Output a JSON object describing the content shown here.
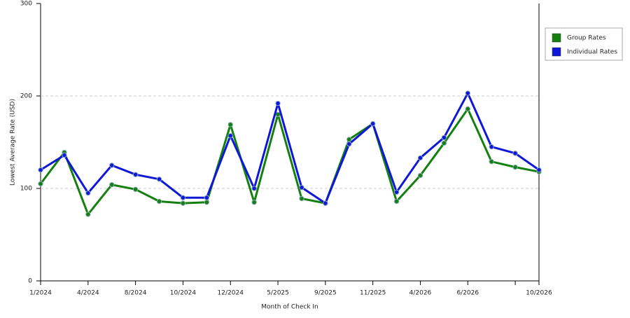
{
  "chart_data": {
    "type": "line",
    "x_label": "Month of Check In",
    "y_label": "Lowest Average Rate (USD)",
    "categories": [
      "1/2024",
      null,
      "4/2024",
      null,
      "8/2024",
      null,
      "10/2024",
      null,
      "12/2024",
      null,
      "5/2025",
      null,
      "9/2025",
      null,
      "11/2025",
      null,
      "4/2026",
      null,
      "6/2026",
      null,
      null,
      "10/2026"
    ],
    "series": [
      {
        "name": "Group Rates",
        "color": "#13800f",
        "values": [
          105,
          139,
          72,
          104,
          99,
          86,
          84,
          85,
          169,
          85,
          180,
          89,
          84,
          153,
          170,
          86,
          114,
          149,
          186,
          129,
          123,
          118
        ]
      },
      {
        "name": "Individual Rates",
        "color": "#0f18d6",
        "values": [
          120,
          136,
          95,
          125,
          115,
          110,
          90,
          90,
          157,
          100,
          192,
          101,
          84,
          148,
          170,
          96,
          133,
          155,
          203,
          145,
          138,
          120
        ]
      }
    ],
    "ylim": [
      0,
      300
    ],
    "yticks": [
      0,
      100,
      200,
      300
    ],
    "grid": true,
    "legend": "right"
  }
}
